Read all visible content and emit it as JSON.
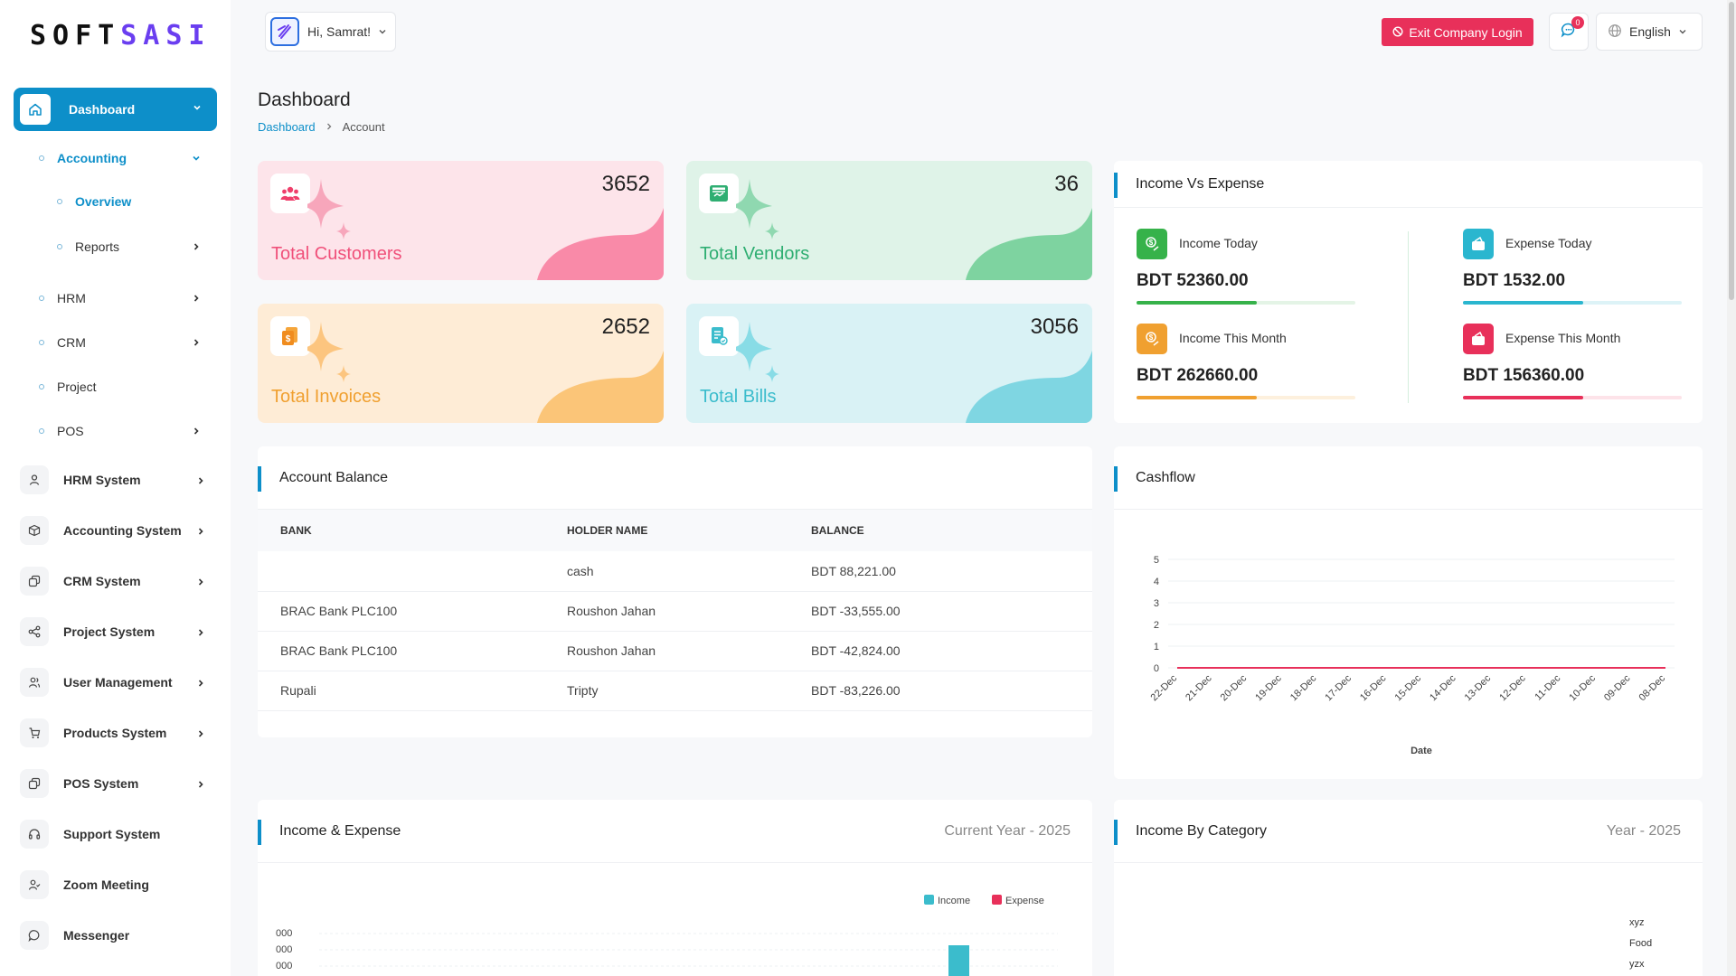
{
  "brand": {
    "logo_main": "SOFT",
    "logo_accent": "SASI"
  },
  "header": {
    "greeting": "Hi, Samrat!",
    "exit_label": "Exit Company Login",
    "notification_count": "0",
    "language": "English"
  },
  "sidebar": {
    "dashboard": "Dashboard",
    "accounting": "Accounting",
    "overview": "Overview",
    "reports": "Reports",
    "hrm": "HRM",
    "crm": "CRM",
    "project": "Project",
    "pos": "POS",
    "systems": [
      {
        "label": "HRM System"
      },
      {
        "label": "Accounting System"
      },
      {
        "label": "CRM System"
      },
      {
        "label": "Project System"
      },
      {
        "label": "User Management"
      },
      {
        "label": "Products System"
      },
      {
        "label": "POS System"
      },
      {
        "label": "Support System"
      },
      {
        "label": "Zoom Meeting"
      },
      {
        "label": "Messenger"
      }
    ]
  },
  "page": {
    "title": "Dashboard",
    "crumb_home": "Dashboard",
    "crumb_current": "Account"
  },
  "stats": [
    {
      "value": "3652",
      "label": "Total Customers",
      "color": "#f0507a"
    },
    {
      "value": "36",
      "label": "Total Vendors",
      "color": "#2fae72"
    },
    {
      "value": "2652",
      "label": "Total Invoices",
      "color": "#f0a030"
    },
    {
      "value": "3056",
      "label": "Total Bills",
      "color": "#3bbccc"
    }
  ],
  "income_vs_expense": {
    "title": "Income Vs Expense",
    "items": [
      {
        "label": "Income Today",
        "value": "BDT 52360.00",
        "progress": 0.55,
        "color": "#36b24a"
      },
      {
        "label": "Expense Today",
        "value": "BDT 1532.00",
        "progress": 0.55,
        "color": "#2ab6cf"
      },
      {
        "label": "Income This Month",
        "value": "BDT 262660.00",
        "progress": 0.55,
        "color": "#f0a030"
      },
      {
        "label": "Expense This Month",
        "value": "BDT 156360.00",
        "progress": 0.55,
        "color": "#e8305a"
      }
    ]
  },
  "account_balance": {
    "title": "Account Balance",
    "columns": [
      "BANK",
      "HOLDER NAME",
      "BALANCE"
    ],
    "rows": [
      [
        "",
        "cash",
        "BDT 88,221.00"
      ],
      [
        "BRAC Bank PLC100",
        "Roushon Jahan",
        "BDT -33,555.00"
      ],
      [
        "BRAC Bank PLC100",
        "Roushon Jahan",
        "BDT -42,824.00"
      ],
      [
        "Rupali",
        "Tripty",
        "BDT -83,226.00"
      ]
    ]
  },
  "cashflow": {
    "title": "Cashflow"
  },
  "income_expense": {
    "title": "Income & Expense",
    "period": "Current Year - 2025"
  },
  "income_by_category": {
    "title": "Income By Category",
    "period": "Year - 2025",
    "legend": [
      "xyz",
      "Food",
      "yzx"
    ]
  },
  "chart_data": [
    {
      "type": "line",
      "title": "",
      "xlabel": "Date",
      "ylabel": "",
      "x": [
        "22-Dec",
        "21-Dec",
        "20-Dec",
        "19-Dec",
        "18-Dec",
        "17-Dec",
        "16-Dec",
        "15-Dec",
        "14-Dec",
        "13-Dec",
        "12-Dec",
        "11-Dec",
        "10-Dec",
        "09-Dec",
        "08-Dec"
      ],
      "yticks": [
        0,
        1,
        2,
        3,
        4,
        5
      ],
      "ylim": [
        0,
        5
      ],
      "series": [
        {
          "values": [
            0,
            0,
            0,
            0,
            0,
            0,
            0,
            0,
            0,
            0,
            0,
            0,
            0,
            0,
            0
          ],
          "color": "#e8305a"
        }
      ],
      "grid": true
    },
    {
      "type": "bar",
      "title": "",
      "series": [
        {
          "name": "Income",
          "color": "#3bbccc"
        },
        {
          "name": "Expense",
          "color": "#e8305a"
        }
      ],
      "ytick_fragments": [
        "000",
        "000",
        "000"
      ],
      "legend": "top-right"
    }
  ]
}
